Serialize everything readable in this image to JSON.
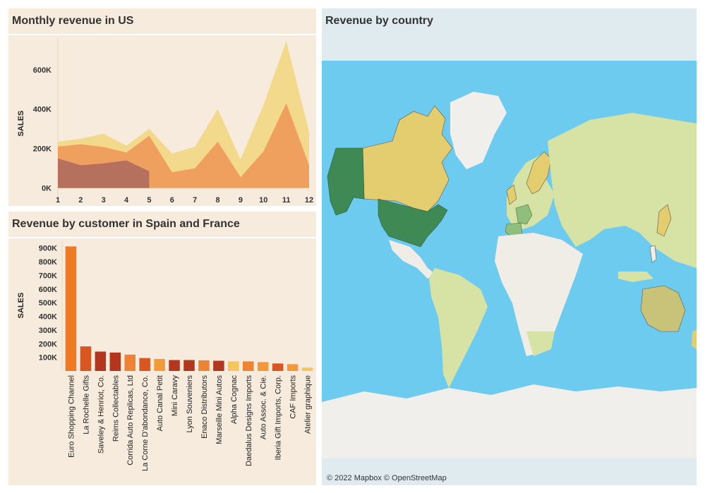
{
  "colors": {
    "panel_bg": "#f6ebdd",
    "title_bg": "#f6ebdd",
    "map_title_bg": "#e0ebef",
    "ocean": "#6ecbf0",
    "land": "#f0ede6",
    "land_green": "#d6e3a5",
    "greenland": "#f1efeb"
  },
  "panels": {
    "us": {
      "title": "Monthly revenue in US"
    },
    "customers": {
      "title": "Revenue by customer in Spain and France"
    },
    "map": {
      "title": "Revenue by country",
      "credit": "© 2022 Mapbox © OpenStreetMap"
    }
  },
  "chart_data": [
    {
      "type": "area",
      "title": "Monthly revenue in US",
      "xlabel": "",
      "ylabel": "SALES",
      "x": [
        1,
        2,
        3,
        4,
        5,
        6,
        7,
        8,
        9,
        10,
        11,
        12
      ],
      "y_ticks": [
        "0K",
        "200K",
        "400K",
        "600K"
      ],
      "y_tick_values": [
        0,
        200000,
        400000,
        600000
      ],
      "ylim": [
        -30000,
        760000
      ],
      "series": [
        {
          "color": "#f3d98c",
          "x": [
            1,
            2,
            3,
            4,
            5,
            6,
            7,
            8,
            9,
            10,
            11,
            12
          ],
          "values": [
            235000,
            250000,
            275000,
            215000,
            300000,
            175000,
            210000,
            400000,
            145000,
            420000,
            745000,
            285000
          ]
        },
        {
          "color": "#ef9f5e",
          "x": [
            1,
            2,
            3,
            4,
            5,
            6,
            7,
            8,
            9,
            10,
            11,
            12
          ],
          "values": [
            210000,
            222000,
            208000,
            180000,
            265000,
            80000,
            100000,
            235000,
            55000,
            185000,
            430000,
            115000
          ]
        },
        {
          "color": "#b5705e",
          "x": [
            1,
            2,
            3,
            4,
            5
          ],
          "values": [
            150000,
            115000,
            125000,
            140000,
            85000
          ]
        }
      ]
    },
    {
      "type": "bar",
      "title": "Revenue by customer in Spain and France",
      "xlabel": "",
      "ylabel": "SALES",
      "ylim": [
        0,
        950000
      ],
      "y_ticks": [
        "100K",
        "200K",
        "300K",
        "400K",
        "500K",
        "600K",
        "700K",
        "800K",
        "900K"
      ],
      "y_tick_values": [
        100000,
        200000,
        300000,
        400000,
        500000,
        600000,
        700000,
        800000,
        900000
      ],
      "categories": [
        "Euro Shopping Channel",
        "La Rochelle Gifts",
        "Saveley & Henriot, Co.",
        "Reims Collectables",
        "Corrida Auto Replicas, Ltd",
        "La Corne D'abondance, Co.",
        "Auto Canal Petit",
        "Mini Caravy",
        "Lyon Souveniers",
        "Enaco Distributors",
        "Marseille Mini Autos",
        "Alpha Cognac",
        "Daedalus Designs Imports",
        "Auto Assoc. & Cie.",
        "Iberia Gift Imports, Corp.",
        "CAF Imports",
        "Atelier graphique"
      ],
      "values": [
        912000,
        180000,
        142000,
        135000,
        120000,
        95000,
        88000,
        80000,
        80000,
        78000,
        75000,
        70000,
        70000,
        65000,
        55000,
        50000,
        25000
      ],
      "colors": [
        "#f07a22",
        "#d8561f",
        "#b3361f",
        "#b3361f",
        "#ee8334",
        "#d8561f",
        "#f3993a",
        "#b3361f",
        "#b3361f",
        "#ee8334",
        "#b3361f",
        "#f6c55b",
        "#ee8334",
        "#f3993a",
        "#d8561f",
        "#f3993a",
        "#f6c55b"
      ]
    }
  ]
}
